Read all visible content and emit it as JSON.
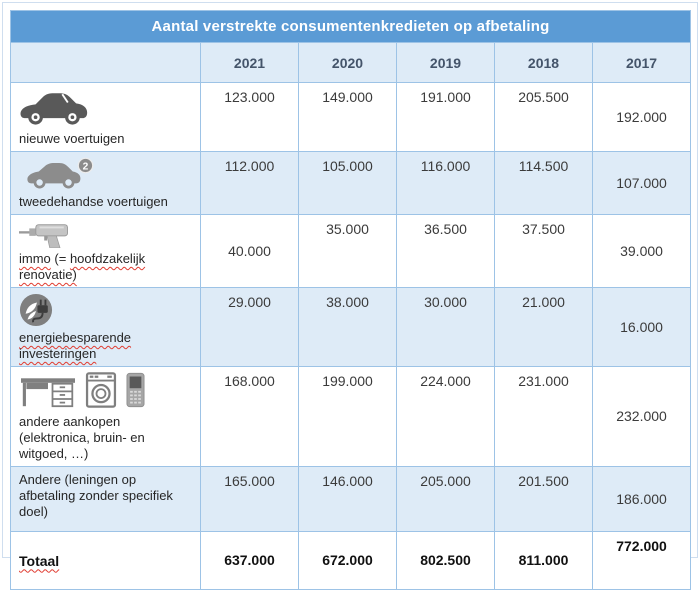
{
  "title": "Aantal verstrekte consumentenkredieten op afbetaling",
  "colors": {
    "header_blue": "#5B9BD5",
    "row_light_blue": "#DEEBF7",
    "grid_line": "#9DC3E6",
    "year_text": "#44546A",
    "spellcheck_red": "#E03C31"
  },
  "icons": {
    "used_car_badge": "2"
  },
  "table": {
    "year_headers": [
      "2021",
      "2020",
      "2019",
      "2018",
      "2017"
    ],
    "rows": [
      {
        "label": "nieuwe voertuigen",
        "icon": "new-car-icon",
        "values": [
          "123.000",
          "149.000",
          "191.000",
          "205.500",
          "192.000"
        ]
      },
      {
        "label": "tweedehandse voertuigen",
        "icon": "used-car-icon",
        "values": [
          "112.000",
          "105.000",
          "116.000",
          "114.500",
          "107.000"
        ]
      },
      {
        "label": "immo (= hoofdzakelijk renovatie)",
        "icon": "drill-icon",
        "values": [
          "40.000",
          "35.000",
          "36.500",
          "37.500",
          "39.000"
        ],
        "misspelled_words": [
          "immo",
          "hoofdzakelijk",
          "renovatie)"
        ]
      },
      {
        "label": "energiebesparende investeringen",
        "icon": "energy-saving-icon",
        "values": [
          "29.000",
          "38.000",
          "30.000",
          "21.000",
          "16.000"
        ],
        "misspelled_words": [
          "energiebesparende",
          "investeringen"
        ]
      },
      {
        "label": "andere aankopen (elektronica, bruin- en witgoed, …)",
        "icon": "appliances-icon",
        "values": [
          "168.000",
          "199.000",
          "224.000",
          "231.000",
          "232.000"
        ]
      },
      {
        "label": "Andere (leningen op afbetaling zonder specifiek doel)",
        "icon": null,
        "values": [
          "165.000",
          "146.000",
          "205.000",
          "201.500",
          "186.000"
        ]
      }
    ],
    "total_row": {
      "label": "Totaal",
      "values": [
        "637.000",
        "672.000",
        "802.500",
        "811.000",
        "772.000"
      ],
      "misspelled_words": [
        "Totaal"
      ]
    }
  },
  "chart_data": {
    "type": "table",
    "title": "Aantal verstrekte consumentenkredieten op afbetaling",
    "categories": [
      "2021",
      "2020",
      "2019",
      "2018",
      "2017"
    ],
    "series": [
      {
        "name": "nieuwe voertuigen",
        "values": [
          123000,
          149000,
          191000,
          205500,
          192000
        ]
      },
      {
        "name": "tweedehandse voertuigen",
        "values": [
          112000,
          105000,
          116000,
          114500,
          107000
        ]
      },
      {
        "name": "immo (= hoofdzakelijk renovatie)",
        "values": [
          40000,
          35000,
          36500,
          37500,
          39000
        ]
      },
      {
        "name": "energiebesparende investeringen",
        "values": [
          29000,
          38000,
          30000,
          21000,
          16000
        ]
      },
      {
        "name": "andere aankopen (elektronica, bruin- en witgoed, …)",
        "values": [
          168000,
          199000,
          224000,
          231000,
          232000
        ]
      },
      {
        "name": "Andere (leningen op afbetaling zonder specifiek doel)",
        "values": [
          165000,
          146000,
          205000,
          201500,
          186000
        ]
      },
      {
        "name": "Totaal",
        "values": [
          637000,
          672000,
          802500,
          811000,
          772000
        ]
      }
    ]
  }
}
